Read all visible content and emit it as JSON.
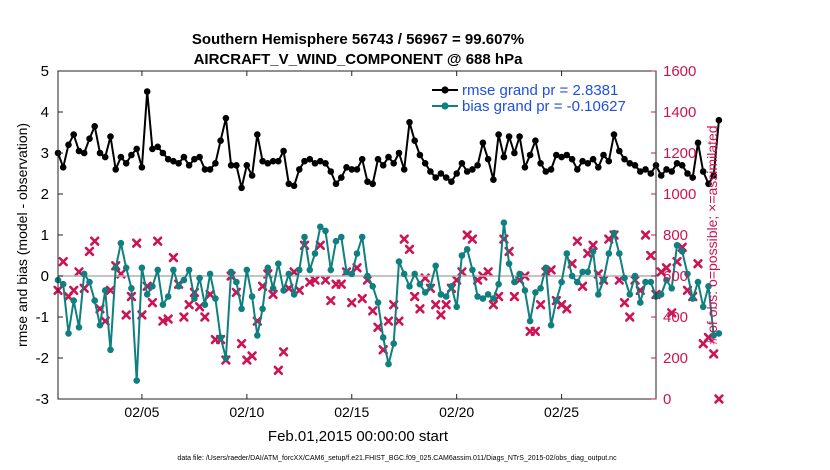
{
  "chart_data": {
    "type": "line",
    "title_line1": "Southern Hemisphere 56743 / 56967 = 99.607%",
    "title_line2": "AIRCRAFT_V_WIND_COMPONENT @ 688 hPa",
    "xlabel": "Feb.01,2015 00:00:00 start",
    "ylabel_left": "rmse and bias (model - observation)",
    "ylabel_right": "# of obs: o=possible; ×=assimilated",
    "footnote": "data file: /Users/raeder/DAI/ATM_forcXX/CAM6_setup/f.e21.FHIST_BGC.f09_025.CAM6assim.011/Diags_NTrS_2015-02/obs_diag_output.nc",
    "x_range": [
      1,
      29.5
    ],
    "x_ticks": [
      {
        "value": 5,
        "label": "02/05"
      },
      {
        "value": 10,
        "label": "02/10"
      },
      {
        "value": 15,
        "label": "02/15"
      },
      {
        "value": 20,
        "label": "02/20"
      },
      {
        "value": 25,
        "label": "02/25"
      }
    ],
    "ylim_left": [
      -3,
      5
    ],
    "yticks_left": [
      "-3",
      "-2",
      "-1",
      "0",
      "1",
      "2",
      "3",
      "4",
      "5"
    ],
    "ylim_right": [
      0,
      1600
    ],
    "yticks_right": [
      "0",
      "200",
      "400",
      "600",
      "800",
      "1000",
      "1200",
      "1400",
      "1600"
    ],
    "x_step_days": 0.25,
    "series": [
      {
        "name": "rmse",
        "legend": "rmse grand pr = 2.8381",
        "color": "#000000",
        "values": [
          3.0,
          2.65,
          3.2,
          3.45,
          3.05,
          3.0,
          3.35,
          3.65,
          3.0,
          2.9,
          3.4,
          2.6,
          2.9,
          2.75,
          2.95,
          3.1,
          2.65,
          4.5,
          3.1,
          3.15,
          3.0,
          2.85,
          2.8,
          2.75,
          2.9,
          2.7,
          2.85,
          2.9,
          2.6,
          2.6,
          2.75,
          3.3,
          3.85,
          2.7,
          2.7,
          2.15,
          2.7,
          2.45,
          3.45,
          2.8,
          2.75,
          2.8,
          2.8,
          3.05,
          2.25,
          2.2,
          2.6,
          2.8,
          2.85,
          2.75,
          2.8,
          2.75,
          2.55,
          2.25,
          2.4,
          2.65,
          2.6,
          2.6,
          2.85,
          2.3,
          2.25,
          2.85,
          2.7,
          2.9,
          2.75,
          3.0,
          2.6,
          3.75,
          3.3,
          2.95,
          2.75,
          2.55,
          2.4,
          2.5,
          2.4,
          2.3,
          2.5,
          2.75,
          2.55,
          2.6,
          2.7,
          3.25,
          2.85,
          2.35,
          3.45,
          2.9,
          3.4,
          3.0,
          3.4,
          2.65,
          2.95,
          3.3,
          2.75,
          2.55,
          2.6,
          2.95,
          2.9,
          2.95,
          2.85,
          2.6,
          2.8,
          2.75,
          2.85,
          2.65,
          2.95,
          2.8,
          3.45,
          3.05,
          2.85,
          2.75,
          2.7,
          2.55,
          2.6,
          2.5,
          2.7,
          2.45,
          2.6,
          2.55,
          2.75,
          2.7,
          2.5,
          2.4,
          3.25,
          2.55,
          2.25,
          2.45,
          3.8
        ]
      },
      {
        "name": "bias",
        "legend": "bias grand pr = -0.10627",
        "color": "#0f7f7f",
        "values": [
          -0.1,
          -0.2,
          -1.4,
          -0.6,
          -1.25,
          0.05,
          -0.15,
          -0.6,
          -1.2,
          -0.35,
          -1.8,
          0.2,
          0.8,
          0.2,
          -0.3,
          -2.55,
          0.2,
          -0.45,
          -0.25,
          0.15,
          -0.7,
          -0.5,
          0.15,
          -0.25,
          -0.1,
          0.15,
          -0.55,
          -0.05,
          -0.7,
          0.05,
          -0.55,
          -1.5,
          -2.0,
          0.1,
          -0.15,
          -0.8,
          0.15,
          -0.5,
          -1.45,
          -0.8,
          0.2,
          -0.3,
          0.3,
          -0.35,
          0.05,
          -0.45,
          0.15,
          0.95,
          0.15,
          0.55,
          1.2,
          1.1,
          0.15,
          0.85,
          0.95,
          0.1,
          0.05,
          0.55,
          0.95,
          0.0,
          -0.25,
          -0.65,
          -1.5,
          -2.15,
          -1.65,
          0.35,
          0.05,
          -0.25,
          0.05,
          -0.2,
          -0.4,
          -0.25,
          0.25,
          -0.45,
          -0.5,
          -0.25,
          -0.75,
          0.5,
          0.65,
          0.15,
          -0.5,
          -0.55,
          -0.45,
          -0.55,
          -0.2,
          1.3,
          0.3,
          -0.15,
          0.05,
          -0.35,
          -1.1,
          -0.4,
          -0.3,
          0.2,
          -1.2,
          -0.6,
          -0.15,
          0.55,
          0.0,
          -0.15,
          0.1,
          0.1,
          0.6,
          -0.45,
          -0.1,
          0.55,
          1.05,
          0.55,
          -0.05,
          -0.45,
          0.0,
          -0.65,
          -0.15,
          -0.15,
          -0.5,
          -0.45,
          -0.1,
          -0.3,
          0.75,
          0.6,
          0.05,
          -0.55,
          -0.15,
          -0.75,
          -0.25,
          -1.45,
          -1.4
        ]
      }
    ],
    "obs_counts_possible_color": "#cc1455",
    "obs_counts": [
      530,
      670,
      500,
      530,
      620,
      540,
      720,
      770,
      440,
      380,
      530,
      650,
      610,
      410,
      500,
      760,
      410,
      550,
      470,
      770,
      380,
      390,
      690,
      560,
      400,
      460,
      520,
      450,
      400,
      510,
      290,
      290,
      190,
      600,
      520,
      270,
      190,
      210,
      380,
      550,
      610,
      510,
      140,
      230,
      540,
      620,
      530,
      750,
      570,
      580,
      750,
      580,
      480,
      560,
      560,
      620,
      470,
      640,
      490,
      580,
      430,
      350,
      240,
      380,
      460,
      380,
      780,
      730,
      500,
      440,
      590,
      540,
      460,
      410,
      460,
      540,
      580,
      620,
      800,
      780,
      580,
      600,
      620,
      460,
      500,
      780,
      720,
      500,
      580,
      600,
      330,
      330,
      460,
      620,
      630,
      480,
      460,
      440,
      660,
      770,
      550,
      710,
      750,
      610,
      580,
      780,
      800,
      580,
      470,
      400,
      580,
      530,
      800,
      700,
      510,
      620,
      640,
      420,
      670,
      740,
      530,
      500,
      660,
      270,
      300,
      220,
      0
    ]
  }
}
